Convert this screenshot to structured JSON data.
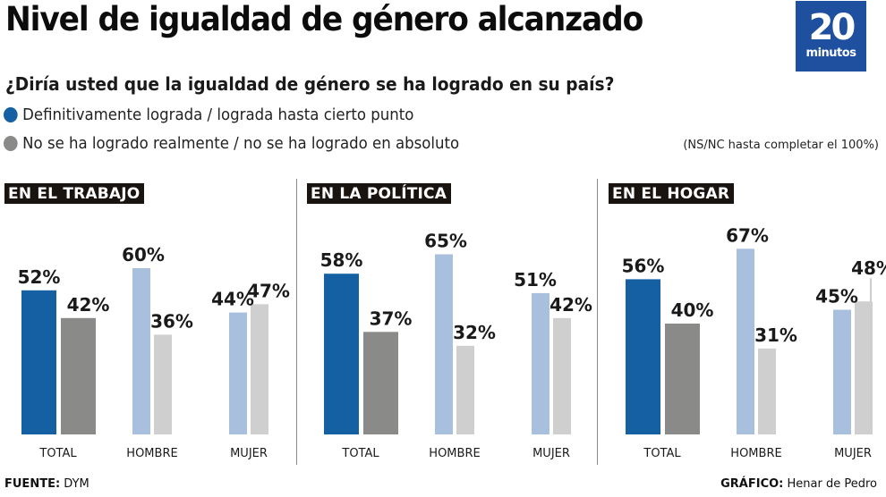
{
  "header": {
    "title": "Nivel de igualdad de género alcanzado",
    "question": "¿Diría usted que la igualdad de género se ha logrado en su país?",
    "note": "(NS/NC hasta completar el 100%)"
  },
  "logo": {
    "number": "20",
    "word": "minutos",
    "color": "#1f4f9f"
  },
  "legend": [
    {
      "label": "Definitivamente lograda / lograda hasta cierto punto",
      "color": "#1560a3"
    },
    {
      "label": "No se ha logrado realmente / no se ha logrado en absoluto",
      "color": "#8a8a88"
    }
  ],
  "footer": {
    "source_label": "FUENTE:",
    "source_value": "DYM",
    "credit_label": "GRÁFICO:",
    "credit_value": "Henar de Pedro"
  },
  "colors": {
    "total_achieved": "#1560a3",
    "total_not_achieved": "#8a8a88",
    "sub_achieved": "#a8c0de",
    "sub_not_achieved": "#cfcfcf",
    "panel_label_bg": "#1a1410"
  },
  "chart_data": [
    {
      "type": "bar",
      "title": "EN EL TRABAJO",
      "categories": [
        "TOTAL",
        "HOMBRE",
        "MUJER"
      ],
      "series": [
        {
          "name": "Definitivamente lograda / lograda hasta cierto punto",
          "values": [
            52,
            60,
            44
          ]
        },
        {
          "name": "No se ha logrado realmente / no se ha logrado en absoluto",
          "values": [
            42,
            36,
            47
          ]
        }
      ],
      "unit": "%",
      "ylim": [
        0,
        100
      ],
      "grid": false,
      "legend": "top-left"
    },
    {
      "type": "bar",
      "title": "EN LA POLÍTICA",
      "categories": [
        "TOTAL",
        "HOMBRE",
        "MUJER"
      ],
      "series": [
        {
          "name": "Definitivamente lograda / lograda hasta cierto punto",
          "values": [
            58,
            65,
            51
          ]
        },
        {
          "name": "No se ha logrado realmente / no se ha logrado en absoluto",
          "values": [
            37,
            32,
            42
          ]
        }
      ],
      "unit": "%",
      "ylim": [
        0,
        100
      ],
      "grid": false,
      "legend": "top-left"
    },
    {
      "type": "bar",
      "title": "EN EL HOGAR",
      "categories": [
        "TOTAL",
        "HOMBRE",
        "MUJER"
      ],
      "series": [
        {
          "name": "Definitivamente lograda / lograda hasta cierto punto",
          "values": [
            56,
            67,
            45
          ]
        },
        {
          "name": "No se ha logrado realmente / no se ha logrado en absoluto",
          "values": [
            40,
            31,
            48
          ]
        }
      ],
      "unit": "%",
      "ylim": [
        0,
        100
      ],
      "grid": false,
      "legend": "top-left"
    }
  ]
}
